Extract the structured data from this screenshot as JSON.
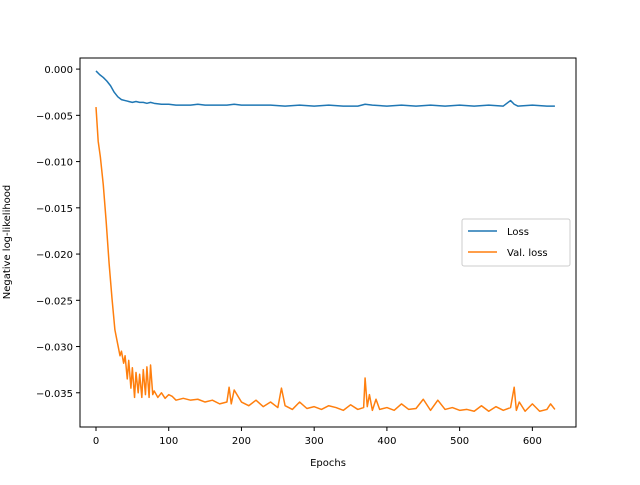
{
  "chart_data": {
    "type": "line",
    "title": "",
    "xlabel": "Epochs",
    "ylabel": "Negative log-likelihood",
    "xlim": [
      -22,
      660
    ],
    "ylim": [
      -0.0387,
      0.0012
    ],
    "xticks": [
      0,
      100,
      200,
      300,
      400,
      500,
      600
    ],
    "xtick_labels": [
      "0",
      "100",
      "200",
      "300",
      "400",
      "500",
      "600"
    ],
    "yticks": [
      0.0,
      -0.005,
      -0.01,
      -0.015,
      -0.02,
      -0.025,
      -0.03,
      -0.035
    ],
    "ytick_labels": [
      "0.000",
      "−0.005",
      "−0.010",
      "−0.015",
      "−0.020",
      "−0.025",
      "−0.030",
      "−0.035"
    ],
    "grid": false,
    "legend_position": "center-right",
    "series": [
      {
        "name": "Loss",
        "color": "#1f77b4",
        "x": [
          0,
          5,
          10,
          15,
          20,
          25,
          30,
          35,
          40,
          45,
          50,
          55,
          60,
          65,
          70,
          75,
          80,
          90,
          100,
          110,
          120,
          130,
          140,
          150,
          160,
          170,
          180,
          190,
          200,
          220,
          240,
          260,
          280,
          300,
          320,
          340,
          360,
          370,
          380,
          400,
          420,
          440,
          460,
          480,
          500,
          520,
          540,
          560,
          570,
          575,
          580,
          600,
          620,
          631
        ],
        "y": [
          -0.0002,
          -0.0006,
          -0.0009,
          -0.0013,
          -0.0018,
          -0.0025,
          -0.003,
          -0.0033,
          -0.0034,
          -0.0035,
          -0.0036,
          -0.0035,
          -0.0036,
          -0.0036,
          -0.0037,
          -0.0036,
          -0.0037,
          -0.0038,
          -0.0038,
          -0.0039,
          -0.0039,
          -0.0039,
          -0.0038,
          -0.0039,
          -0.0039,
          -0.0039,
          -0.0039,
          -0.0038,
          -0.0039,
          -0.0039,
          -0.0039,
          -0.004,
          -0.0039,
          -0.004,
          -0.0039,
          -0.004,
          -0.004,
          -0.0038,
          -0.0039,
          -0.004,
          -0.0039,
          -0.004,
          -0.0039,
          -0.004,
          -0.0039,
          -0.004,
          -0.0039,
          -0.004,
          -0.0034,
          -0.0038,
          -0.004,
          -0.0039,
          -0.004,
          -0.004
        ]
      },
      {
        "name": "Val. loss",
        "color": "#ff7f0e",
        "x": [
          0,
          3,
          6,
          10,
          14,
          18,
          22,
          26,
          30,
          33,
          35,
          38,
          40,
          43,
          45,
          48,
          50,
          53,
          55,
          58,
          60,
          63,
          65,
          68,
          70,
          73,
          75,
          78,
          80,
          85,
          90,
          95,
          100,
          105,
          110,
          120,
          130,
          140,
          150,
          160,
          170,
          180,
          183,
          186,
          190,
          200,
          210,
          220,
          230,
          240,
          250,
          255,
          260,
          270,
          280,
          290,
          300,
          310,
          320,
          330,
          340,
          350,
          360,
          368,
          370,
          373,
          376,
          380,
          385,
          390,
          400,
          410,
          420,
          430,
          440,
          450,
          460,
          470,
          480,
          490,
          500,
          510,
          520,
          530,
          540,
          550,
          560,
          570,
          575,
          578,
          582,
          590,
          600,
          610,
          620,
          625,
          631
        ],
        "y": [
          -0.0041,
          -0.0078,
          -0.0095,
          -0.0125,
          -0.0165,
          -0.021,
          -0.0248,
          -0.0282,
          -0.0298,
          -0.031,
          -0.0305,
          -0.0318,
          -0.031,
          -0.0335,
          -0.0315,
          -0.0345,
          -0.0323,
          -0.0355,
          -0.0328,
          -0.035,
          -0.033,
          -0.0355,
          -0.0325,
          -0.0352,
          -0.0322,
          -0.0355,
          -0.032,
          -0.0352,
          -0.0348,
          -0.0355,
          -0.035,
          -0.0356,
          -0.0352,
          -0.0354,
          -0.0358,
          -0.0356,
          -0.0358,
          -0.0357,
          -0.036,
          -0.0358,
          -0.0362,
          -0.036,
          -0.0344,
          -0.0362,
          -0.0347,
          -0.036,
          -0.0364,
          -0.0358,
          -0.0365,
          -0.036,
          -0.0366,
          -0.0345,
          -0.0364,
          -0.0368,
          -0.036,
          -0.0367,
          -0.0365,
          -0.0368,
          -0.0364,
          -0.0366,
          -0.0369,
          -0.0363,
          -0.0368,
          -0.0366,
          -0.0334,
          -0.0365,
          -0.0352,
          -0.0369,
          -0.0357,
          -0.0368,
          -0.0366,
          -0.0369,
          -0.0362,
          -0.0368,
          -0.0367,
          -0.0357,
          -0.0369,
          -0.0358,
          -0.0368,
          -0.0366,
          -0.0369,
          -0.0368,
          -0.037,
          -0.0364,
          -0.037,
          -0.0365,
          -0.0369,
          -0.0366,
          -0.0344,
          -0.0369,
          -0.036,
          -0.037,
          -0.0362,
          -0.037,
          -0.0368,
          -0.0362,
          -0.0368
        ]
      }
    ]
  }
}
